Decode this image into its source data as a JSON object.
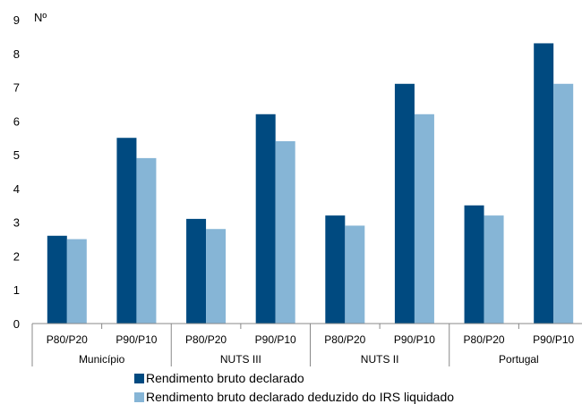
{
  "chart_data": {
    "type": "bar",
    "ylabel": "Nº",
    "ylim": [
      0,
      9
    ],
    "yticks": [
      0,
      1,
      2,
      3,
      4,
      5,
      6,
      7,
      8,
      9
    ],
    "groups": [
      {
        "label": "Município",
        "categories": [
          "P80/P20",
          "P90/P10"
        ]
      },
      {
        "label": "NUTS III",
        "categories": [
          "P80/P20",
          "P90/P10"
        ]
      },
      {
        "label": "NUTS II",
        "categories": [
          "P80/P20",
          "P90/P10"
        ]
      },
      {
        "label": "Portugal",
        "categories": [
          "P80/P20",
          "P90/P10"
        ]
      }
    ],
    "series": [
      {
        "name": "Rendimento bruto declarado",
        "color": "#004a80",
        "values": [
          2.6,
          5.5,
          3.1,
          6.2,
          3.2,
          7.1,
          3.5,
          8.3
        ]
      },
      {
        "name": "Rendimento bruto declarado deduzido do IRS liquidado",
        "color": "#86b5d6",
        "values": [
          2.5,
          4.9,
          2.8,
          5.4,
          2.9,
          6.2,
          3.2,
          7.1
        ]
      }
    ],
    "legend_position": "bottom",
    "grid": false
  }
}
